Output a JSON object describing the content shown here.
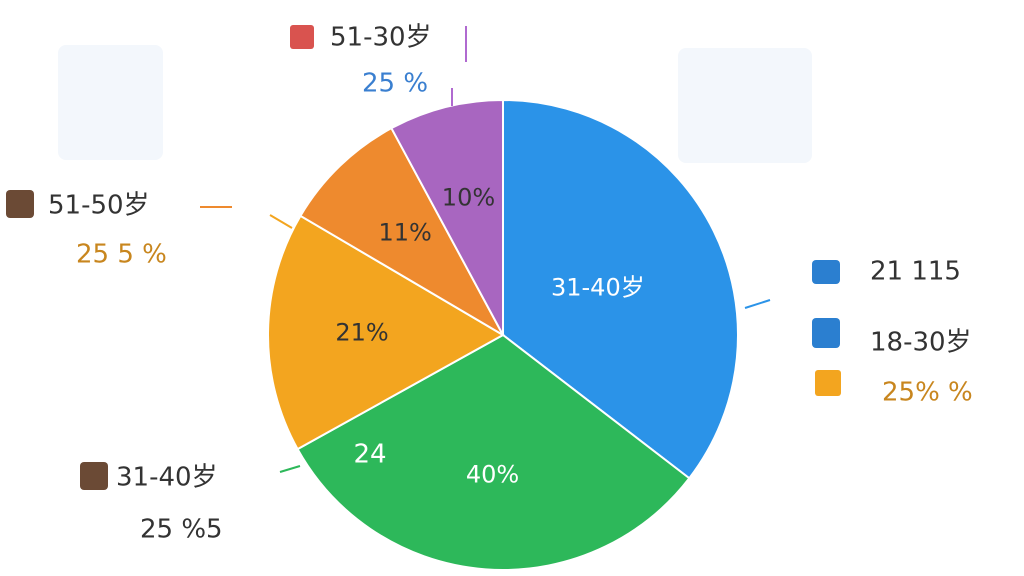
{
  "chart_data": {
    "type": "pie",
    "categories": [
      "31-40岁",
      null,
      null,
      null,
      null
    ],
    "values": [
      45,
      40,
      21,
      11,
      10
    ],
    "value_labels": [
      null,
      "40%",
      "21%",
      "11%",
      "10%"
    ],
    "colors": [
      "#2b93e8",
      "#2db85a",
      "#f3a51f",
      "#ee8a2e",
      "#a866c0"
    ],
    "annotations": [
      {
        "text": "24"
      },
      {
        "text": "51-30岁"
      },
      {
        "text": "25 %"
      },
      {
        "text": "51-50岁"
      },
      {
        "text": "25 5 %"
      },
      {
        "text": "31-40岁"
      },
      {
        "text": "25 %5"
      },
      {
        "text": "21  115"
      },
      {
        "text": "18-30岁"
      },
      {
        "text": "25% %"
      }
    ]
  }
}
